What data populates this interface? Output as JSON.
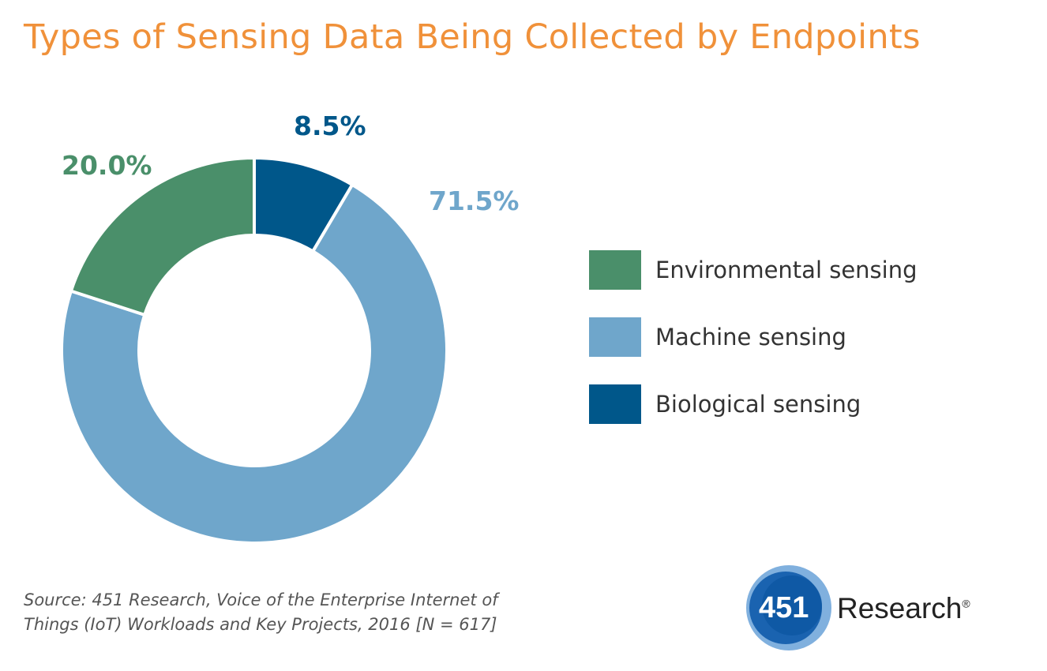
{
  "chart_data": {
    "type": "pie",
    "donut": true,
    "title": "Types of Sensing Data Being Collected by Endpoints",
    "categories": [
      "Biological sensing",
      "Machine sensing",
      "Environmental sensing"
    ],
    "values": [
      8.5,
      71.5,
      20.0
    ],
    "data_labels": [
      "8.5%",
      "71.5%",
      "20.0%"
    ],
    "colors": [
      "#00578a",
      "#6fa6cb",
      "#4a8f6a"
    ],
    "legend": {
      "placement": "right",
      "entries": [
        {
          "label": "Environmental sensing",
          "color": "#4a8f6a"
        },
        {
          "label": "Machine sensing",
          "color": "#6fa6cb"
        },
        {
          "label": "Biological sensing",
          "color": "#00578a"
        }
      ]
    },
    "source": [
      "Source: 451 Research, Voice of the Enterprise Internet of",
      "Things (IoT) Workloads and Key Projects, 2016 [N = 617]"
    ]
  },
  "logo": {
    "number": "451",
    "word": "Research",
    "mark": "®"
  },
  "title_color": "#f0913a"
}
